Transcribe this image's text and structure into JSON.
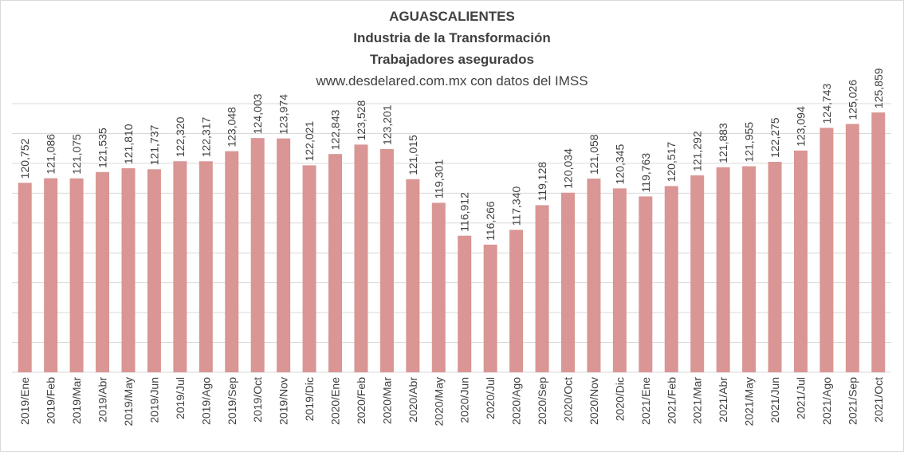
{
  "title_lines": [
    "AGUASCALIENTES",
    "Industria  de la Transformación",
    "Trabajadores  asegurados",
    "www.desdelared.com.mx  con datos del IMSS"
  ],
  "chart_data": {
    "type": "bar",
    "title": "AGUASCALIENTES",
    "categories": [
      "2019/Ene",
      "2019/Feb",
      "2019/Mar",
      "2019/Abr",
      "2019/May",
      "2019/Jun",
      "2019/Jul",
      "2019/Ago",
      "2019/Sep",
      "2019/Oct",
      "2019/Nov",
      "2019/Dic",
      "2020/Ene",
      "2020/Feb",
      "2020/Mar",
      "2020/Abr",
      "2020/May",
      "2020/Jun",
      "2020/Jul",
      "2020/Ago",
      "2020/Sep",
      "2020/Oct",
      "2020/Nov",
      "2020/Dic",
      "2021/Ene",
      "2021/Feb",
      "2021/Mar",
      "2021/Abr",
      "2021/May",
      "2021/Jun",
      "2021/Jul",
      "2021/Ago",
      "2021/Sep",
      "2021/Oct"
    ],
    "values": [
      120752,
      121086,
      121075,
      121535,
      121810,
      121737,
      122320,
      122317,
      123048,
      124003,
      123974,
      122021,
      122843,
      123528,
      123201,
      121015,
      119301,
      116912,
      116266,
      117340,
      119128,
      120034,
      121058,
      120345,
      119763,
      120517,
      121292,
      121883,
      121955,
      122275,
      123094,
      124743,
      125026,
      125859
    ],
    "labels": [
      "120,752",
      "121,086",
      "121,075",
      "121,535",
      "121,810",
      "121,737",
      "122,320",
      "122,317",
      "123,048",
      "124,003",
      "123,974",
      "122,021",
      "122,843",
      "123,528",
      "123,201",
      "121,015",
      "119,301",
      "116,912",
      "116,266",
      "117,340",
      "119,128",
      "120,034",
      "121,058",
      "120,345",
      "119,763",
      "120,517",
      "121,292",
      "121,883",
      "121,955",
      "122,275",
      "123,094",
      "124,743",
      "125,026",
      "125,859"
    ],
    "ylim": [
      107000,
      126500
    ],
    "grid": true,
    "bar_color": "#d99694",
    "gridline_color": "#d9d9d9",
    "text_color": "#404040",
    "xlabel": "",
    "ylabel": ""
  }
}
